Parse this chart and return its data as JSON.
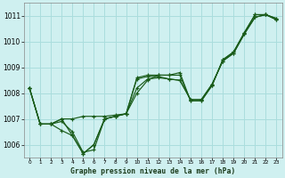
{
  "title": "Graphe pression niveau de la mer (hPa)",
  "bg_color": "#cff0f0",
  "grid_color": "#aadddd",
  "line_color": "#1a5c1a",
  "xlim": [
    -0.5,
    23.5
  ],
  "ylim": [
    1005.5,
    1011.5
  ],
  "yticks": [
    1006,
    1007,
    1008,
    1009,
    1010,
    1011
  ],
  "xticks": [
    0,
    1,
    2,
    3,
    4,
    5,
    6,
    7,
    8,
    9,
    10,
    11,
    12,
    13,
    14,
    15,
    16,
    17,
    18,
    19,
    20,
    21,
    22,
    23
  ],
  "xlabel_fontsize": 5.8,
  "series": [
    [
      1008.2,
      1006.8,
      1006.8,
      1006.9,
      1006.5,
      1005.7,
      1005.8,
      1007.0,
      1007.1,
      1007.2,
      1008.6,
      1008.7,
      1008.7,
      1008.7,
      1008.8,
      1007.7,
      1007.7,
      1008.3,
      1009.3,
      1009.6,
      1010.35,
      1011.05,
      1011.05,
      1010.9
    ],
    [
      1008.2,
      1006.8,
      1006.8,
      1006.55,
      1006.35,
      1005.65,
      1006.0,
      1007.0,
      1007.1,
      1007.2,
      1008.55,
      1008.65,
      1008.65,
      1008.55,
      1008.5,
      1007.75,
      1007.75,
      1008.35,
      1009.25,
      1009.55,
      1010.3,
      1010.95,
      1011.05,
      1010.85
    ],
    [
      1008.2,
      1006.8,
      1006.8,
      1007.0,
      1007.0,
      1007.1,
      1007.1,
      1007.1,
      1007.15,
      1007.2,
      1008.2,
      1008.55,
      1008.6,
      1008.55,
      1008.5,
      1007.75,
      1007.75,
      1008.35,
      1009.25,
      1009.55,
      1010.3,
      1010.95,
      1011.05,
      1010.85
    ],
    [
      1008.2,
      1006.8,
      1006.8,
      1007.0,
      1006.35,
      1005.65,
      1006.0,
      1007.0,
      1007.1,
      1007.2,
      1008.0,
      1008.5,
      1008.7,
      1008.7,
      1008.7,
      1007.7,
      1007.7,
      1008.3,
      1009.3,
      1009.6,
      1010.35,
      1011.05,
      1011.05,
      1010.9
    ]
  ]
}
